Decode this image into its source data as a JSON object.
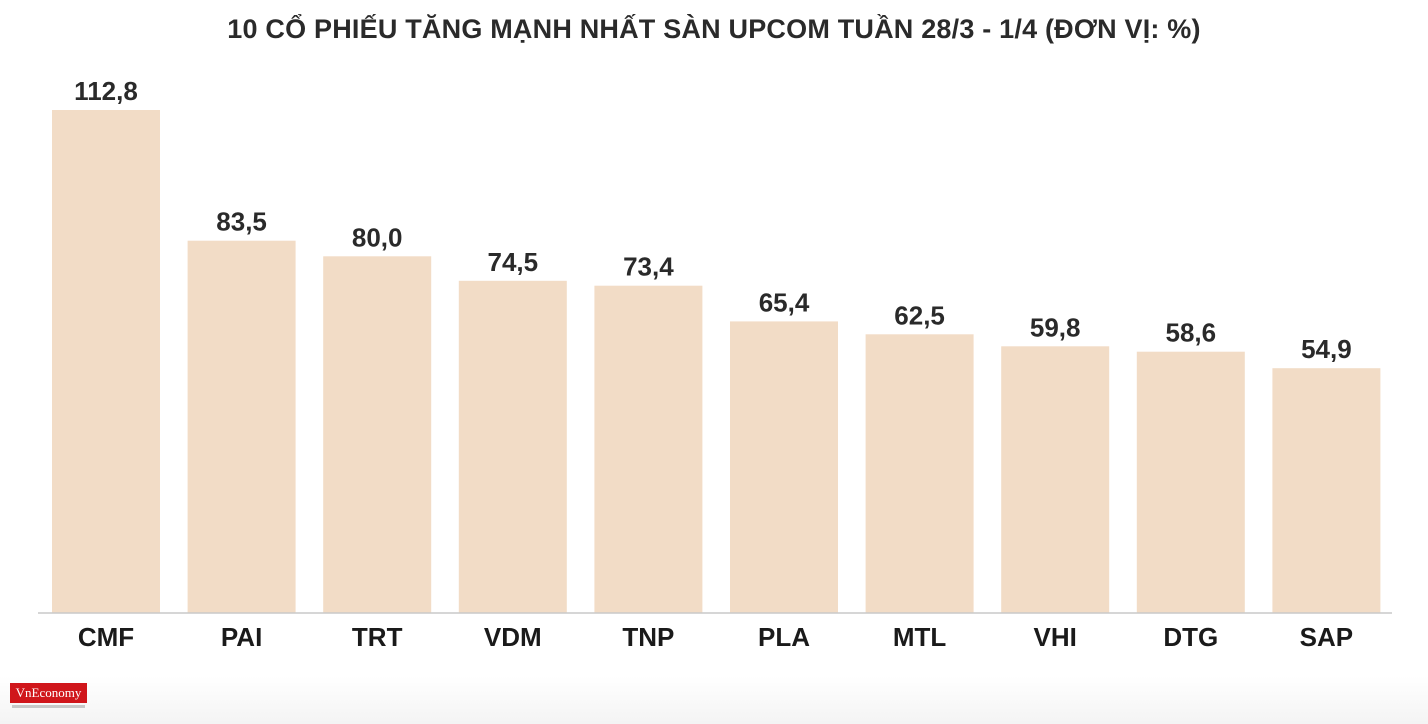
{
  "chart_data": {
    "type": "bar",
    "title": "10 CỔ PHIẾU TĂNG MẠNH NHẤT SÀN UPCOM TUẦN 28/3 - 1/4 (ĐƠN VỊ: %)",
    "categories": [
      "CMF",
      "PAI",
      "TRT",
      "VDM",
      "TNP",
      "PLA",
      "MTL",
      "VHI",
      "DTG",
      "SAP"
    ],
    "values": [
      112.8,
      83.5,
      80.0,
      74.5,
      73.4,
      65.4,
      62.5,
      59.8,
      58.6,
      54.9
    ],
    "value_labels": [
      "112,8",
      "83,5",
      "80,0",
      "74,5",
      "73,4",
      "65,4",
      "62,5",
      "59,8",
      "58,6",
      "54,9"
    ],
    "ylim": [
      0,
      112.8
    ],
    "bar_color": "#f2dcc6",
    "grid": false,
    "legend": "none"
  },
  "logo": {
    "text": "VnEconomy",
    "color": "#d0161b"
  }
}
